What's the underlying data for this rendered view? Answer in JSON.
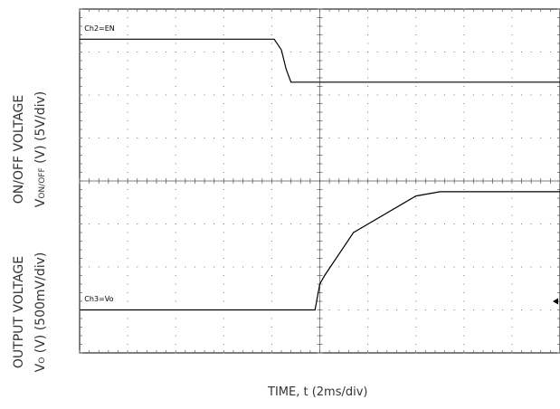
{
  "labels": {
    "y_top_line1": "ON/OFF VOLTAGE",
    "y_top_line2_prefix": "V",
    "y_top_line2_sub": "ON/OFF",
    "y_top_line2_suffix": " (V) (5V/div)",
    "y_bot_line1": "OUTPUT VOLTAGE",
    "y_bot_line2_prefix": "V",
    "y_bot_line2_sub": "O",
    "y_bot_line2_suffix": " (V) (500mV/div)",
    "x_label": "TIME, t (2ms/div)"
  },
  "chart_data": {
    "type": "line",
    "grid": true,
    "x_divisions": 10,
    "y_divisions": 8,
    "xlabel": "TIME, t (2ms/div)",
    "xlim": [
      0,
      10
    ],
    "ylim": [
      0,
      8
    ],
    "series": [
      {
        "name": "Ch2=EN",
        "color": "#000000",
        "x": [
          0,
          4.05,
          4.2,
          4.3,
          4.4,
          10
        ],
        "y": [
          7.3,
          7.3,
          7.05,
          6.6,
          6.3,
          6.3
        ]
      },
      {
        "name": "Ch3=Vo",
        "color": "#000000",
        "x": [
          0,
          4.9,
          5.0,
          5.1,
          5.7,
          7.0,
          7.5,
          10
        ],
        "y": [
          1.0,
          1.0,
          1.6,
          1.8,
          2.8,
          3.65,
          3.75,
          3.75
        ]
      }
    ],
    "markers": [
      {
        "label": "Ch2=EN",
        "x": 0.1,
        "y": 7.5
      },
      {
        "label": "Ch3=Vo",
        "x": 0.1,
        "y": 1.2
      }
    ],
    "trigger_marker": {
      "side": "right",
      "y": 1.2
    }
  }
}
